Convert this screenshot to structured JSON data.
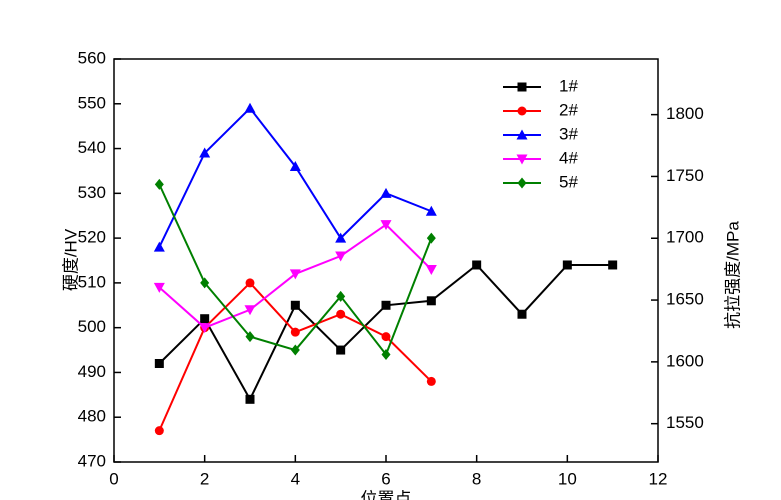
{
  "chart_data": {
    "type": "line",
    "x_label": "位置点",
    "y_label": "硬度/HV",
    "y2_label": "抗拉强度/MPa",
    "x": [
      1,
      2,
      3,
      4,
      5,
      6,
      7,
      8,
      9,
      10,
      11
    ],
    "xlim": [
      0,
      12
    ],
    "xticks": [
      0,
      2,
      4,
      6,
      8,
      10,
      12
    ],
    "ylim": [
      470,
      560
    ],
    "yticks": [
      470,
      480,
      490,
      500,
      510,
      520,
      530,
      540,
      550,
      560
    ],
    "y2lim": [
      1519,
      1845
    ],
    "y2ticks": [
      1550,
      1600,
      1650,
      1700,
      1750,
      1800
    ],
    "legend": "upper right",
    "series": [
      {
        "name": "1#",
        "color": "#000000",
        "marker": "square",
        "values": [
          492,
          502,
          484,
          505,
          495,
          505,
          506,
          514,
          503,
          514,
          514
        ]
      },
      {
        "name": "2#",
        "color": "#ff0000",
        "marker": "circle",
        "values": [
          477,
          500,
          510,
          499,
          503,
          498,
          488,
          null,
          null,
          null,
          null
        ]
      },
      {
        "name": "3#",
        "color": "#0000ff",
        "marker": "triangle-up",
        "values": [
          518,
          539,
          549,
          536,
          520,
          530,
          526,
          null,
          null,
          null,
          null
        ]
      },
      {
        "name": "4#",
        "color": "#ff00ff",
        "marker": "triangle-down",
        "values": [
          509,
          500,
          504,
          512,
          516,
          523,
          513,
          null,
          null,
          null,
          null
        ]
      },
      {
        "name": "5#",
        "color": "#008000",
        "marker": "diamond",
        "values": [
          532,
          510,
          498,
          495,
          507,
          494,
          520,
          null,
          null,
          null,
          null
        ]
      }
    ]
  }
}
